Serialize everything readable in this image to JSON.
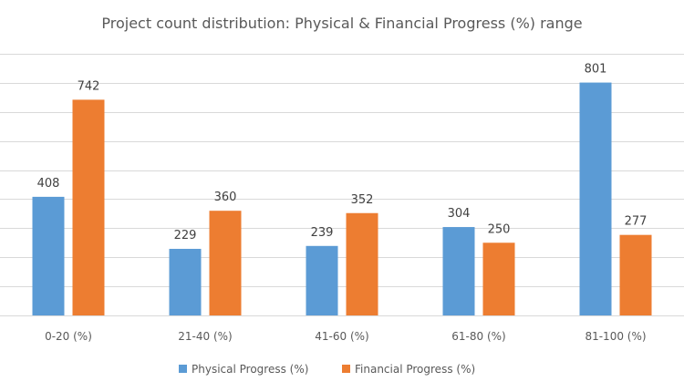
{
  "chart_data": {
    "type": "bar",
    "title": "Project count distribution: Physical & Financial Progress (%) range",
    "categories": [
      "0-20 (%)",
      "21-40 (%)",
      "41-60 (%)",
      "61-80 (%)",
      "81-100 (%)"
    ],
    "series": [
      {
        "name": "Physical Progress (%)",
        "color": "#5b9bd5",
        "values": [
          408,
          229,
          239,
          304,
          801
        ]
      },
      {
        "name": "Financial Progress (%)",
        "color": "#ed7d31",
        "values": [
          742,
          360,
          352,
          250,
          277
        ]
      }
    ],
    "xlabel": "",
    "ylabel": "",
    "ylim": [
      0,
      900
    ],
    "y_tick_step": 100,
    "y_tick_labels_visible": false,
    "grid": true,
    "legend": "bottom"
  }
}
